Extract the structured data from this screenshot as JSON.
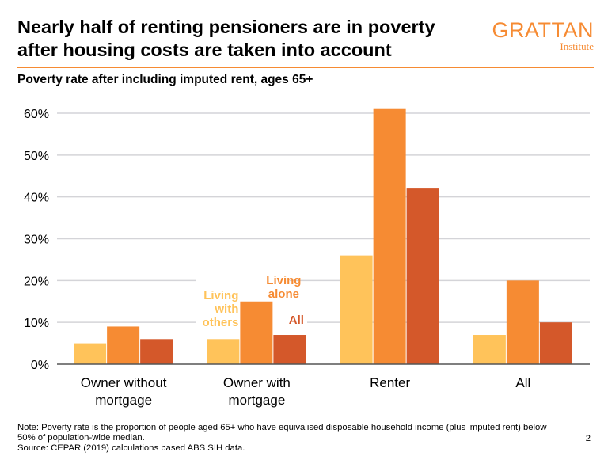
{
  "header": {
    "title_line1": "Nearly half of renting pensioners are in poverty",
    "title_line2": "after housing costs are taken into account",
    "logo_main": "GRATTAN",
    "logo_sub": "Institute"
  },
  "chart_data": {
    "type": "bar",
    "title": "Poverty rate after including imputed rent, ages 65+",
    "categories": [
      [
        "Owner without",
        "mortgage"
      ],
      [
        "Owner with",
        "mortgage"
      ],
      [
        "Renter"
      ],
      [
        "All"
      ]
    ],
    "series": [
      {
        "name": "Living with others",
        "label_lines": [
          "Living",
          "with",
          "others"
        ],
        "color": "#FFC35A",
        "values": [
          5,
          6,
          26,
          7
        ]
      },
      {
        "name": "Living alone",
        "label_lines": [
          "Living",
          "alone"
        ],
        "color": "#F68B33",
        "values": [
          9,
          15,
          61,
          20
        ]
      },
      {
        "name": "All",
        "label_lines": [
          "All"
        ],
        "color": "#D4582A",
        "values": [
          6,
          7,
          42,
          10
        ]
      }
    ],
    "ylim": [
      0,
      60
    ],
    "yticks": [
      0,
      10,
      20,
      30,
      40,
      50,
      60
    ],
    "ytick_labels": [
      "0%",
      "10%",
      "20%",
      "30%",
      "40%",
      "50%",
      "60%"
    ],
    "grid": true,
    "legend": "inline-labels-on-second-group"
  },
  "footer": {
    "note_line1": "Note: Poverty rate is the proportion of people aged 65+ who have equivalised disposable household income (plus imputed rent) below",
    "note_line2": "50% of population-wide median.",
    "source": "Source: CEPAR (2019) calculations based ABS SIH data.",
    "page": "2"
  }
}
